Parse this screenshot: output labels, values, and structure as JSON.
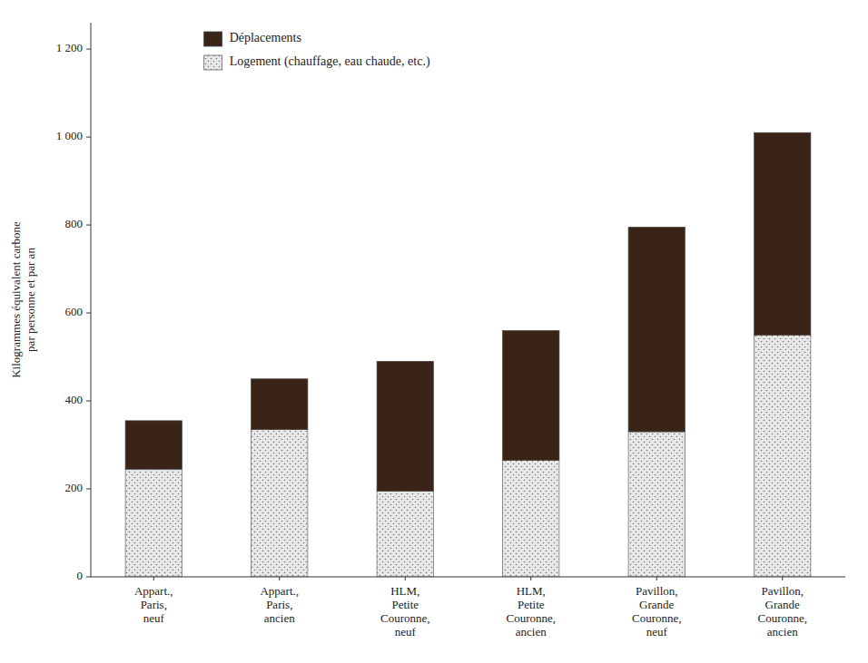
{
  "chart_data": {
    "type": "bar",
    "stacked": true,
    "categories": [
      "Appart.,\nParis,\nneuf",
      "Appart.,\nParis,\nancien",
      "HLM,\nPetite\nCouronne,\nneuf",
      "HLM,\nPetite\nCouronne,\nancien",
      "Pavillon,\nGrande\nCouronne,\nneuf",
      "Pavillon,\nGrande\nCouronne,\nancien"
    ],
    "series": [
      {
        "name": "Logement (chauffage, eau chaude, etc.)",
        "color": "#e8e8e8",
        "values": [
          245,
          335,
          195,
          265,
          330,
          550
        ]
      },
      {
        "name": "Déplacements",
        "color": "#3a2418",
        "values": [
          110,
          115,
          295,
          295,
          465,
          460
        ]
      }
    ],
    "y_label": "Kilogrammes équivalent carbone\npar personne et par an",
    "ylim": [
      0,
      1260
    ],
    "yticks": [
      0,
      200,
      400,
      600,
      800,
      {
        "value": 1000,
        "label": "1 000"
      },
      {
        "value": 1200,
        "label": "1 200"
      }
    ],
    "grid": false,
    "legend": "upper left"
  }
}
